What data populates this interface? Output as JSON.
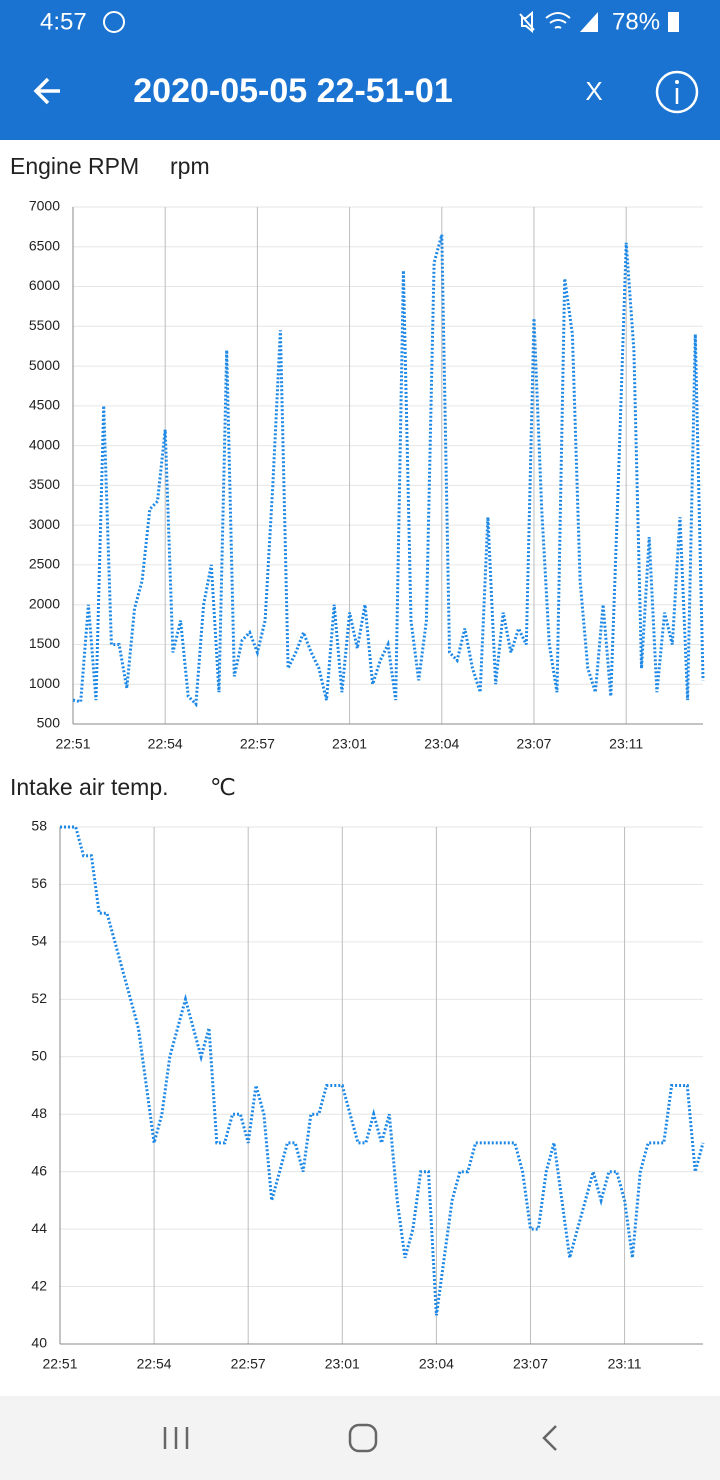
{
  "status_bar": {
    "time": "4:57",
    "battery": "78%"
  },
  "app_bar": {
    "title": "2020-05-05 22-51-01",
    "close": "X"
  },
  "chart_data": [
    {
      "type": "line",
      "title": "Engine RPM",
      "y_unit": "rpm",
      "color": "#1e88e5",
      "grid": true,
      "categories": [
        "22:51",
        null,
        null,
        null,
        null,
        null,
        null,
        null,
        null,
        null,
        null,
        null,
        "22:54",
        null,
        null,
        null,
        null,
        null,
        null,
        null,
        null,
        null,
        null,
        null,
        "22:57",
        null,
        null,
        null,
        null,
        null,
        null,
        null,
        null,
        null,
        null,
        null,
        "23:01",
        null,
        null,
        null,
        null,
        null,
        null,
        null,
        null,
        null,
        null,
        null,
        "23:04",
        null,
        null,
        null,
        null,
        null,
        null,
        null,
        null,
        null,
        null,
        null,
        "23:07",
        null,
        null,
        null,
        null,
        null,
        null,
        null,
        null,
        null,
        null,
        null,
        "23:11",
        null,
        null,
        null,
        null,
        null,
        null,
        null,
        null,
        null,
        null
      ],
      "values": [
        800,
        780,
        2000,
        800,
        4500,
        1500,
        1500,
        950,
        1950,
        2300,
        3200,
        3300,
        4200,
        1400,
        1800,
        850,
        750,
        2000,
        2500,
        900,
        5200,
        1100,
        1550,
        1650,
        1400,
        1800,
        3500,
        5450,
        1200,
        1400,
        1650,
        1400,
        1200,
        800,
        2000,
        900,
        1900,
        1450,
        2000,
        1000,
        1300,
        1500,
        800,
        6200,
        1800,
        1050,
        1800,
        6300,
        6650,
        1400,
        1300,
        1700,
        1200,
        900,
        3100,
        1000,
        1900,
        1400,
        1700,
        1500,
        5600,
        3200,
        1500,
        900,
        6100,
        5400,
        2300,
        1200,
        900,
        2000,
        850,
        3600,
        6550,
        5200,
        1200,
        2850,
        900,
        1900,
        1500,
        3100,
        800,
        5400,
        1050
      ],
      "ylim": [
        500,
        7000
      ],
      "yticks": [
        500,
        1000,
        1500,
        2000,
        2500,
        3000,
        3500,
        4000,
        4500,
        5000,
        5500,
        6000,
        6500,
        7000
      ]
    },
    {
      "type": "line",
      "title": "Intake air temp.",
      "y_unit": "℃",
      "color": "#1e88e5",
      "grid": true,
      "categories": [
        "22:51",
        null,
        null,
        null,
        null,
        null,
        null,
        null,
        null,
        null,
        null,
        null,
        "22:54",
        null,
        null,
        null,
        null,
        null,
        null,
        null,
        null,
        null,
        null,
        null,
        "22:57",
        null,
        null,
        null,
        null,
        null,
        null,
        null,
        null,
        null,
        null,
        null,
        "23:01",
        null,
        null,
        null,
        null,
        null,
        null,
        null,
        null,
        null,
        null,
        null,
        "23:04",
        null,
        null,
        null,
        null,
        null,
        null,
        null,
        null,
        null,
        null,
        null,
        "23:07",
        null,
        null,
        null,
        null,
        null,
        null,
        null,
        null,
        null,
        null,
        null,
        "23:11",
        null,
        null,
        null,
        null,
        null,
        null,
        null,
        null,
        null,
        null
      ],
      "values": [
        58,
        58,
        58,
        57,
        57,
        55,
        55,
        54,
        53,
        52,
        51,
        49,
        47,
        48,
        50,
        51,
        52,
        51,
        50,
        51,
        47,
        47,
        48,
        48,
        47,
        49,
        48,
        45,
        46,
        47,
        47,
        46,
        48,
        48,
        49,
        49,
        49,
        48,
        47,
        47,
        48,
        47,
        48,
        45,
        43,
        44,
        46,
        46,
        41,
        43,
        45,
        46,
        46,
        47,
        47,
        47,
        47,
        47,
        47,
        46,
        44,
        44,
        46,
        47,
        45,
        43,
        44,
        45,
        46,
        45,
        46,
        46,
        45,
        43,
        46,
        47,
        47,
        47,
        49,
        49,
        49,
        46,
        47
      ],
      "ylim": [
        40,
        58
      ],
      "yticks": [
        40,
        42,
        44,
        46,
        48,
        50,
        52,
        54,
        56,
        58
      ]
    }
  ]
}
